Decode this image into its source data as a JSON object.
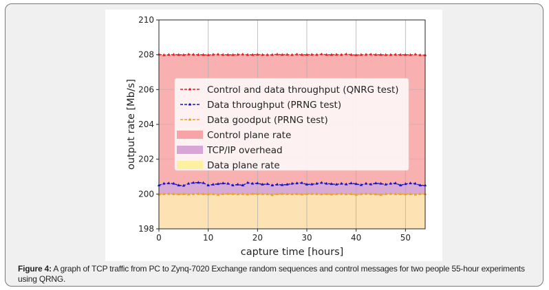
{
  "caption": {
    "label": "Figure 4:",
    "text": " A graph of TCP traffic from PC to Zynq-7020 Exchange random sequences and control messages for two people 55-hour experiments using QRNG."
  },
  "chart_data": {
    "type": "line",
    "title": "",
    "xlabel": "capture time [hours]",
    "ylabel": "output rate [Mb/s]",
    "xlim": [
      0,
      54
    ],
    "ylim": [
      198,
      210
    ],
    "xticks": [
      0,
      10,
      20,
      30,
      40,
      50
    ],
    "yticks": [
      198,
      200,
      202,
      204,
      206,
      208,
      210
    ],
    "grid": true,
    "legend_position": "center",
    "x": [
      0,
      1,
      2,
      3,
      4,
      5,
      6,
      7,
      8,
      9,
      10,
      11,
      12,
      13,
      14,
      15,
      16,
      17,
      18,
      19,
      20,
      21,
      22,
      23,
      24,
      25,
      26,
      27,
      28,
      29,
      30,
      31,
      32,
      33,
      34,
      35,
      36,
      37,
      38,
      39,
      40,
      41,
      42,
      43,
      44,
      45,
      46,
      47,
      48,
      49,
      50,
      51,
      52,
      53,
      54
    ],
    "series": [
      {
        "name": "Control and data throughput (QNRG test)",
        "kind": "line",
        "color": "#e8191c",
        "values": [
          208.02,
          207.98,
          208.0,
          208.01,
          208.0,
          207.99,
          208.02,
          208.01,
          208.0,
          208.0,
          207.98,
          208.01,
          208.02,
          208.0,
          208.0,
          207.99,
          208.01,
          208.02,
          208.0,
          208.0,
          208.01,
          208.0,
          207.99,
          208.0,
          208.02,
          208.0,
          208.01,
          207.99,
          208.02,
          208.0,
          208.0,
          208.01,
          208.0,
          208.03,
          208.0,
          208.0,
          208.01,
          208.0,
          208.03,
          208.0,
          207.98,
          208.0,
          208.01,
          208.02,
          208.0,
          208.0,
          207.99,
          208.0,
          208.01,
          208.0,
          208.0,
          207.99,
          208.02,
          207.98,
          207.98
        ]
      },
      {
        "name": "Data throughput (PRNG test)",
        "kind": "line",
        "color": "#1414c8",
        "values": [
          200.5,
          200.6,
          200.62,
          200.6,
          200.5,
          200.48,
          200.6,
          200.65,
          200.66,
          200.64,
          200.5,
          200.55,
          200.58,
          200.62,
          200.6,
          200.5,
          200.55,
          200.5,
          200.65,
          200.6,
          200.62,
          200.55,
          200.58,
          200.5,
          200.55,
          200.52,
          200.55,
          200.6,
          200.62,
          200.64,
          200.55,
          200.56,
          200.6,
          200.65,
          200.6,
          200.58,
          200.55,
          200.6,
          200.56,
          200.62,
          200.58,
          200.52,
          200.6,
          200.56,
          200.62,
          200.6,
          200.55,
          200.6,
          200.62,
          200.5,
          200.58,
          200.62,
          200.6,
          200.5,
          200.5
        ]
      },
      {
        "name": "Data goodput (PRNG test)",
        "kind": "line",
        "color": "#f0a020",
        "values": [
          199.98,
          200.0,
          200.01,
          200.0,
          199.99,
          200.0,
          199.98,
          200.0,
          200.01,
          200.0,
          199.99,
          200.0,
          199.96,
          200.0,
          200.01,
          200.0,
          199.99,
          200.0,
          199.98,
          200.01,
          200.0,
          200.0,
          199.99,
          199.95,
          200.0,
          200.01,
          200.0,
          199.99,
          200.0,
          199.98,
          200.0,
          200.01,
          200.0,
          199.99,
          200.0,
          199.98,
          200.0,
          200.01,
          199.99,
          200.0,
          199.96,
          200.0,
          200.01,
          200.0,
          199.99,
          199.96,
          200.0,
          200.01,
          200.0,
          200.0,
          199.99,
          200.0,
          199.97,
          200.0,
          200.0
        ]
      },
      {
        "name": "Control plane rate",
        "kind": "fill",
        "color": "#f9b0b0"
      },
      {
        "name": "TCP/IP overhead",
        "kind": "fill",
        "color": "#d8aad4"
      },
      {
        "name": "Data plane rate",
        "kind": "fill",
        "color": "#fde2b4"
      }
    ],
    "legend_swatch_colors": [
      "#f6a4a6",
      "#d8a6d6",
      "#fdf0a0"
    ]
  }
}
